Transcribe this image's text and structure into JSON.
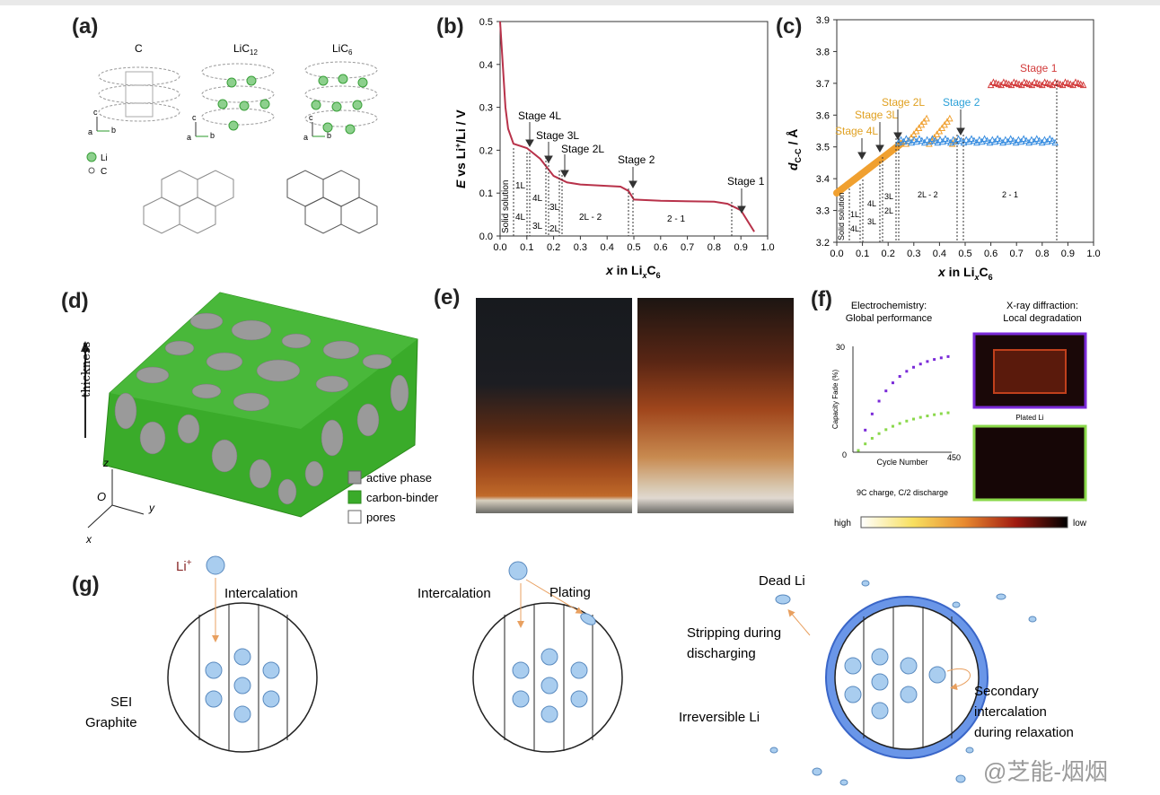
{
  "panels": {
    "a": {
      "label": "(a)",
      "structures": [
        "C",
        "LiC",
        "LiC"
      ],
      "subscripts": [
        "12",
        "6"
      ],
      "legend": [
        "Li",
        "C"
      ],
      "axis_letters": [
        "a",
        "b",
        "c"
      ]
    },
    "b": {
      "label": "(b)",
      "ylabel_E": "E",
      "ylabel_rest": " vs Li",
      "ylabel_tail": "/Li / V",
      "xlabel_x": "x",
      "xlabel_in": " in Li",
      "xlabel_sub_x": "x",
      "xlabel_C": "C",
      "xlabel_6": "6",
      "yticks": [
        "0.0",
        "0.1",
        "0.2",
        "0.3",
        "0.4",
        "0.5"
      ],
      "xticks": [
        "0.0",
        "0.1",
        "0.2",
        "0.3",
        "0.4",
        "0.5",
        "0.6",
        "0.7",
        "0.8",
        "0.9",
        "1.0"
      ],
      "annotations": [
        "Stage 4L",
        "Stage 3L",
        "Stage 2L",
        "Stage 2",
        "Stage 1"
      ],
      "regions": [
        "Solid solution",
        "1L",
        "4L",
        "4L",
        "3L",
        "3L",
        "2L",
        "2L - 2",
        "2 - 1"
      ]
    },
    "c": {
      "label": "(c)",
      "ylabel_d": "d",
      "ylabel_sub": "C-C",
      "ylabel_unit": " / Å",
      "xlabel_x": "x",
      "xlabel_in": " in Li",
      "xlabel_sub_x": "x",
      "xlabel_C": "C",
      "xlabel_6": "6",
      "yticks": [
        "3.2",
        "3.3",
        "3.4",
        "3.5",
        "3.6",
        "3.7",
        "3.8",
        "3.9"
      ],
      "xticks": [
        "0.0",
        "0.1",
        "0.2",
        "0.3",
        "0.4",
        "0.5",
        "0.6",
        "0.7",
        "0.8",
        "0.9",
        "1.0"
      ],
      "annotations": [
        "Stage 4L",
        "Stage 3L",
        "Stage 2L",
        "Stage 2",
        "Stage 1"
      ],
      "regions": [
        "Solid solution",
        "1L",
        "4L",
        "4L",
        "3L",
        "3L",
        "2L",
        "2L - 2",
        "2 - 1"
      ],
      "colors": {
        "orange": "#f0a030",
        "blue": "#3a8ee0",
        "red": "#d23a3a",
        "stage2_text": "#2aa0d8",
        "stage1_text": "#d23a3a",
        "stageL_text": "#e0a020"
      }
    },
    "d": {
      "label": "(d)",
      "axis_label": "thickness",
      "axes": [
        "z",
        "O",
        "y",
        "x"
      ],
      "legend": [
        "active phase",
        "carbon-binder",
        "pores"
      ],
      "colors": {
        "active": "#9a9a9a",
        "binder": "#3aab2a",
        "pores": "#ffffff"
      }
    },
    "e": {
      "label": "(e)"
    },
    "f": {
      "label": "(f)",
      "title_left_1": "Electrochemistry:",
      "title_left_2": "Global performance",
      "title_right_1": "X-ray diffraction:",
      "title_right_2": "Local degradation",
      "ylabel": "Capacity Fade (%)",
      "xlabel": "Cycle Number",
      "y_max": "30",
      "y_min": "0",
      "x_max": "450",
      "plated": "Plated Li",
      "condition": "9C charge, C/2 discharge",
      "scale_high": "high",
      "scale_low": "low",
      "colors": {
        "purple": "#7a2ad8",
        "green": "#8ad84a"
      }
    },
    "g": {
      "label": "(g)",
      "left": {
        "li_plus": "Li",
        "li_sup": "+",
        "intercalation": "Intercalation",
        "sei": "SEI",
        "graphite": "Graphite"
      },
      "middle": {
        "intercalation": "Intercalation",
        "plating": "Plating"
      },
      "right": {
        "dead_li": "Dead Li",
        "stripping_1": "Stripping during",
        "stripping_2": "discharging",
        "irreversible": "Irreversible Li",
        "secondary_1": "Secondary",
        "secondary_2": "intercalation",
        "secondary_3": "during relaxation"
      },
      "colors": {
        "ball": "#a9cdef",
        "arrow": "#e8a060",
        "sei": "#6a96e8"
      }
    }
  },
  "watermark": "@芝能-烟烟"
}
